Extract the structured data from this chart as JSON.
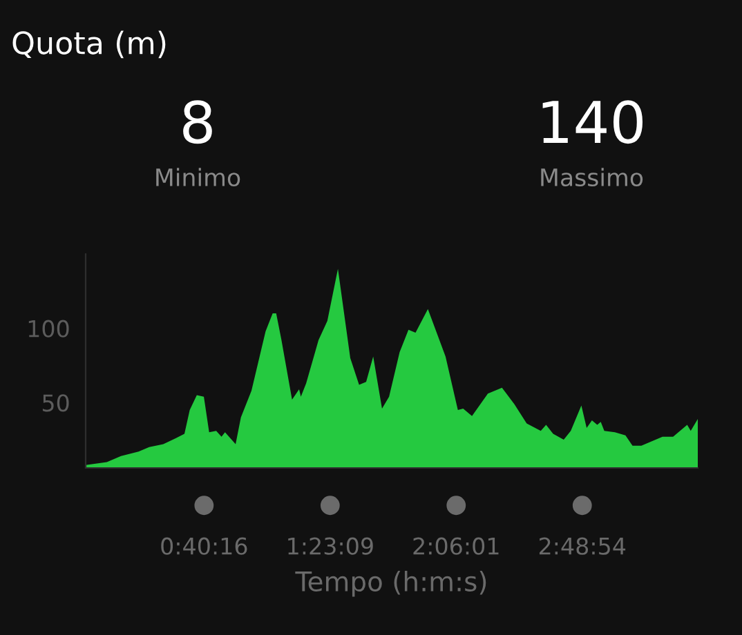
{
  "chart_data": {
    "type": "area",
    "title": "Quota (m)",
    "xlabel": "Tempo (h:m:s)",
    "annotations": [
      "8",
      "Minimo",
      "140",
      "Massimo"
    ],
    "x": [
      0.0,
      0.12,
      0.2,
      0.3,
      0.36,
      0.44,
      0.51,
      0.56,
      0.59,
      0.63,
      0.67,
      0.7,
      0.74,
      0.77,
      0.79,
      0.85,
      0.88,
      0.94,
      1.02,
      1.06,
      1.08,
      1.11,
      1.17,
      1.21,
      1.22,
      1.25,
      1.32,
      1.37,
      1.43,
      1.5,
      1.55,
      1.59,
      1.63,
      1.68,
      1.72,
      1.78,
      1.83,
      1.87,
      1.94,
      2.04,
      2.11,
      2.14,
      2.19,
      2.28,
      2.36,
      2.43,
      2.5,
      2.58,
      2.61,
      2.65,
      2.71,
      2.75,
      2.81,
      2.84,
      2.87,
      2.9,
      2.92,
      2.94,
      3.0,
      3.06,
      3.1,
      3.15,
      3.27,
      3.33,
      3.41,
      3.43,
      3.47
    ],
    "series": [
      {
        "color": "#25c940",
        "values": [
          8,
          10,
          14,
          17,
          20,
          22,
          26,
          29,
          45,
          55,
          54,
          30,
          31,
          27,
          30,
          22,
          40,
          58,
          98,
          110,
          110,
          92,
          52,
          59,
          54,
          63,
          92,
          105,
          140,
          80,
          62,
          64,
          81,
          46,
          54,
          84,
          99,
          97,
          113,
          81,
          45,
          46,
          41,
          56,
          60,
          49,
          36,
          31,
          35,
          29,
          25,
          31,
          48,
          33,
          38,
          35,
          37,
          31,
          30,
          28,
          21,
          21,
          27,
          27,
          35,
          31,
          39
        ]
      }
    ],
    "xlim": [
      0,
      3.47
    ],
    "ylim": [
      6,
      150
    ],
    "yticks": [
      50,
      100
    ],
    "xticks": [
      {
        "value": 0.6711,
        "label": "0:40:16"
      },
      {
        "value": 1.3858,
        "label": "1:23:09"
      },
      {
        "value": 2.1003,
        "label": "2:06:01"
      },
      {
        "value": 2.815,
        "label": "2:48:54"
      }
    ],
    "grid": false,
    "legend": false
  }
}
